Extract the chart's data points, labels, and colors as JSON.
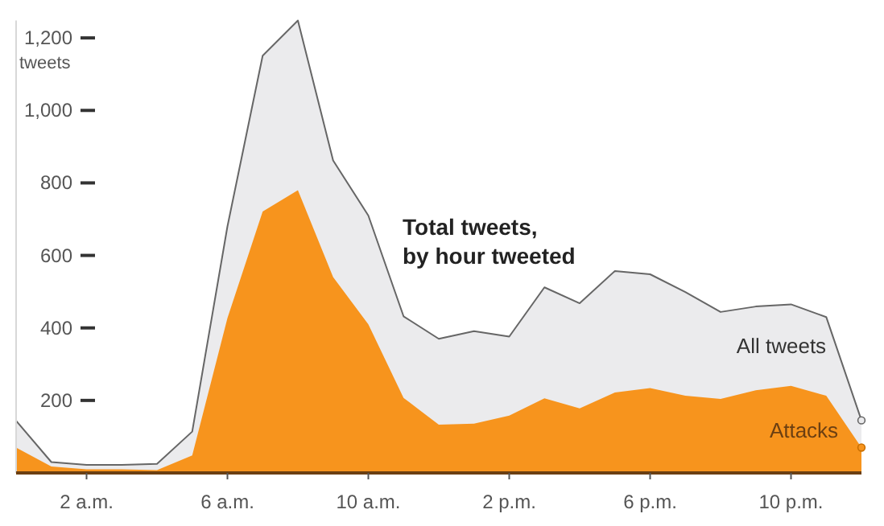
{
  "chart_data": {
    "type": "area",
    "title": "Total tweets, by hour tweeted",
    "ylabel": "tweets",
    "series": [
      {
        "name": "All tweets",
        "color": "#ebebed",
        "values": [
          144,
          30,
          22,
          22,
          25,
          114,
          680,
          1151,
          1248,
          862,
          710,
          432,
          370,
          391,
          376,
          512,
          468,
          557,
          548,
          499,
          444,
          459,
          465,
          430,
          145
        ]
      },
      {
        "name": "Attacks",
        "color": "#f7941d",
        "values": [
          70,
          18,
          10,
          10,
          8,
          48,
          427,
          721,
          780,
          540,
          410,
          207,
          133,
          136,
          158,
          206,
          178,
          222,
          234,
          213,
          204,
          228,
          240,
          213,
          70
        ]
      }
    ],
    "categories": [
      null,
      null,
      "2 a.m.",
      null,
      null,
      null,
      "6 a.m.",
      null,
      null,
      null,
      "10 a.m.",
      null,
      null,
      null,
      "2 p.m.",
      null,
      null,
      null,
      "6 p.m.",
      null,
      null,
      null,
      "10 p.m.",
      null,
      null
    ],
    "yticks": [
      {
        "value": 200,
        "label": "200"
      },
      {
        "value": 400,
        "label": "400"
      },
      {
        "value": 600,
        "label": "600"
      },
      {
        "value": 800,
        "label": "800"
      },
      {
        "value": 1000,
        "label": "1,000"
      },
      {
        "value": 1200,
        "label": "1,200"
      }
    ],
    "ylim": [
      0,
      1248
    ],
    "grid": false
  }
}
